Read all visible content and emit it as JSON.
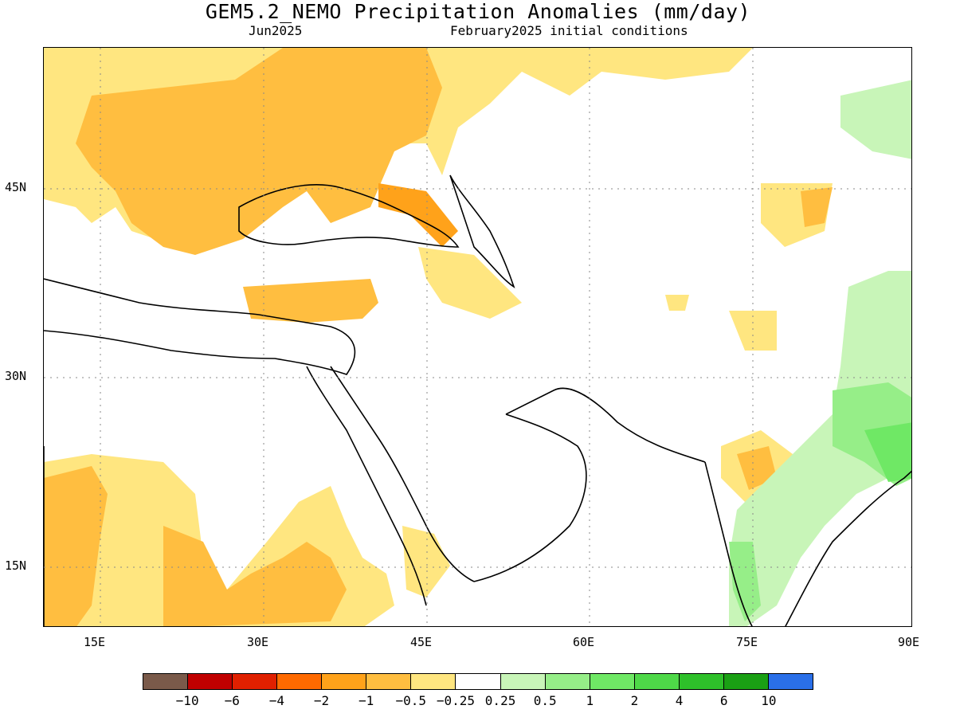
{
  "title": "GEM5.2_NEMO Precipitation Anomalies (mm/day)",
  "subtitle_left": "Jun2025",
  "subtitle_right": "February2025 initial conditions",
  "axes": {
    "lon_ticks": [
      "15E",
      "30E",
      "45E",
      "60E",
      "75E",
      "90E"
    ],
    "lat_ticks": [
      "45N",
      "30N",
      "15N"
    ]
  },
  "colorbar": {
    "colors": [
      "#7a5a4a",
      "#c00000",
      "#e02000",
      "#ff6a00",
      "#ffa21a",
      "#ffbe40",
      "#ffe680",
      "#ffffff",
      "#c8f5b8",
      "#96ee88",
      "#6fe865",
      "#4ed848",
      "#2ec02a",
      "#1aa014",
      "#2a6fe8"
    ],
    "labels": [
      "−10",
      "−6",
      "−4",
      "−2",
      "−1",
      "−0.5",
      "−0.25",
      "0.25",
      "0.5",
      "1",
      "2",
      "4",
      "6",
      "10"
    ]
  },
  "map_colors": {
    "light_orange": "#ffe680",
    "orange": "#ffbe40",
    "dark_orange": "#ffa21a",
    "light_green": "#c8f5b8",
    "green": "#96ee88",
    "bright_green": "#6fe865"
  }
}
